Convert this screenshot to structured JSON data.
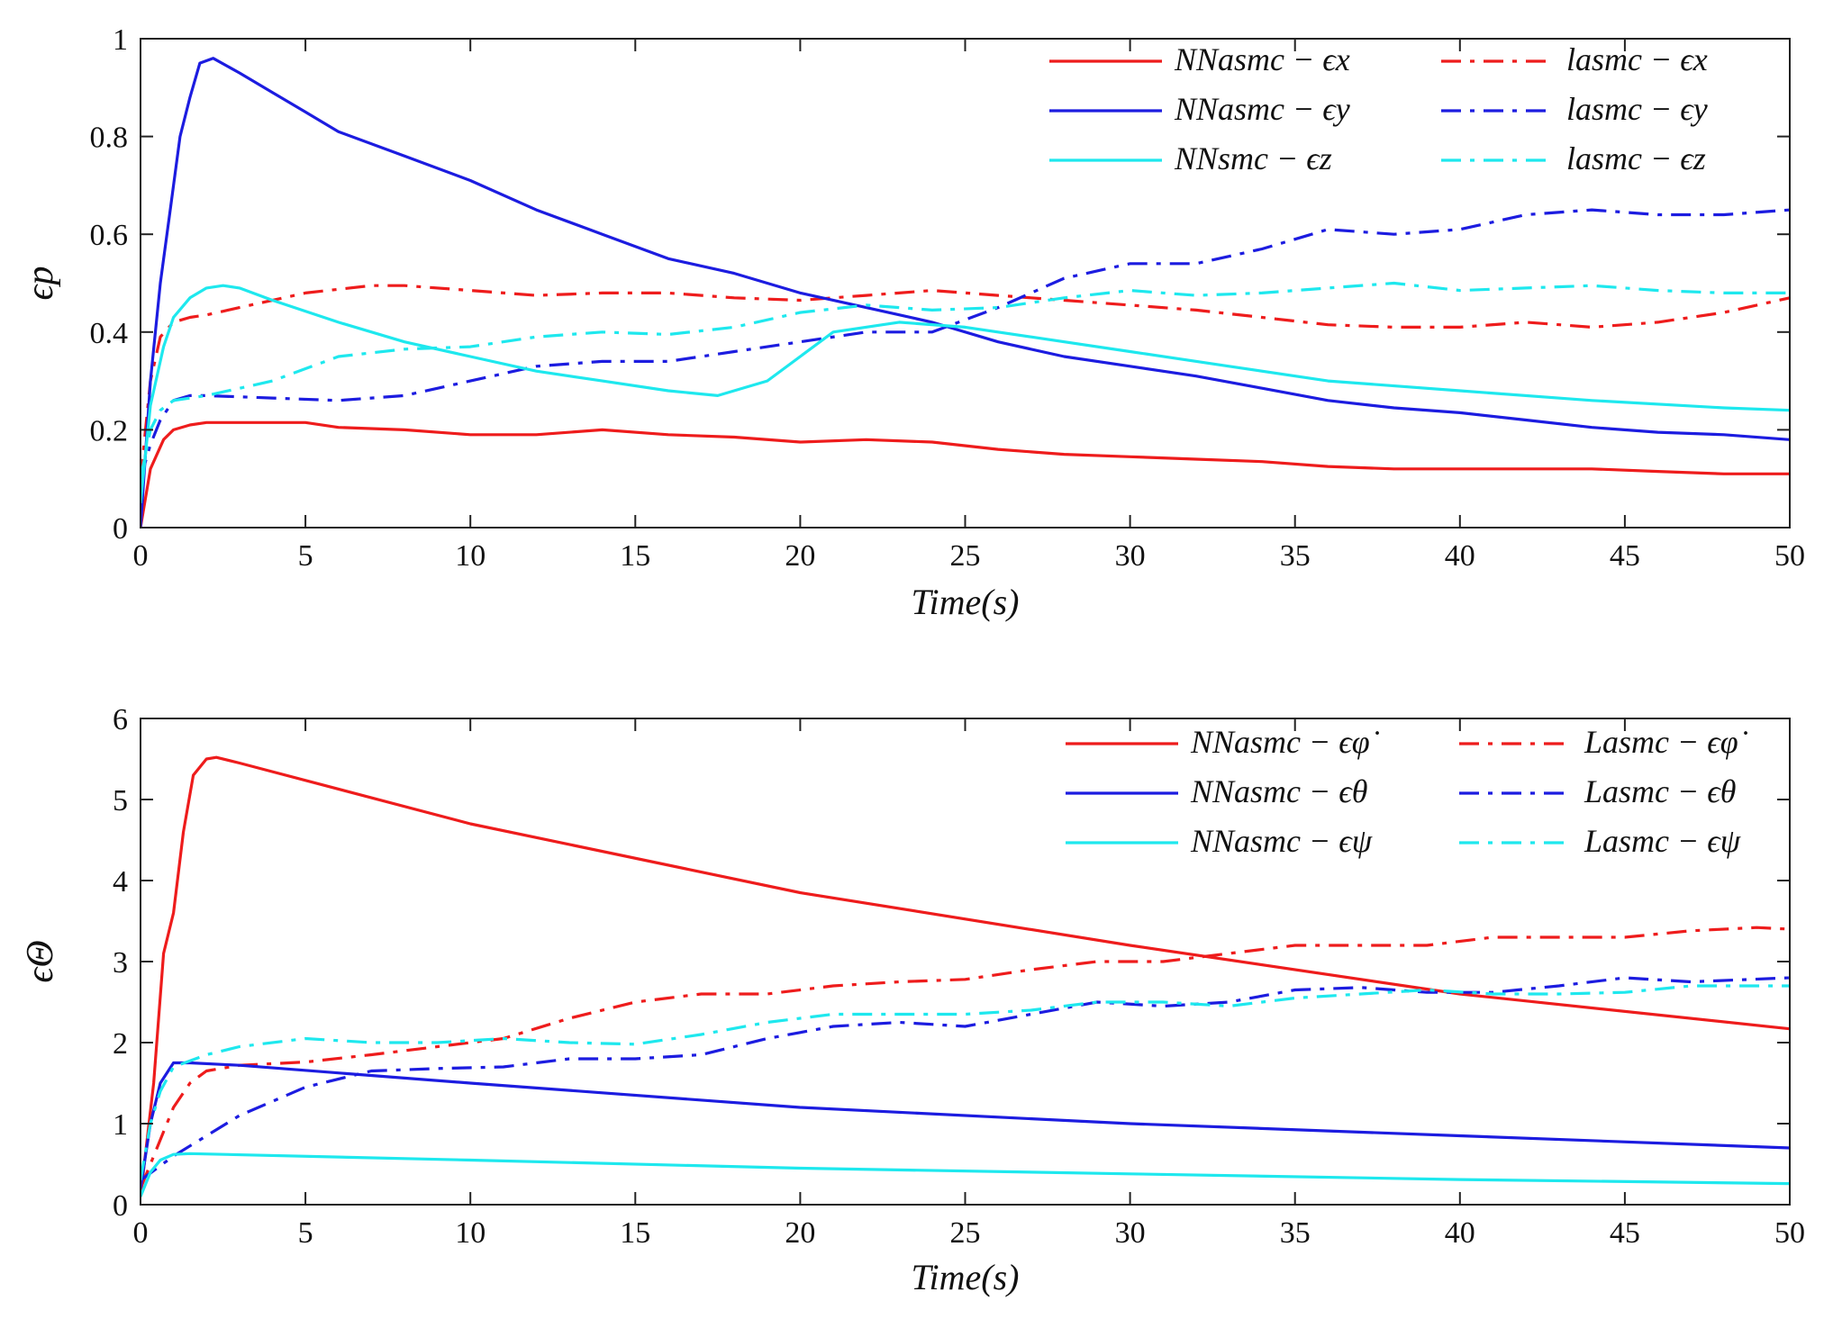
{
  "figure": {
    "colors": {
      "red": "#ee1c1c",
      "blue": "#1c1ce0",
      "cyan": "#1ee8ee",
      "axis": "#222222"
    }
  },
  "chart_data": [
    {
      "type": "line",
      "xlabel": "Time(s)",
      "ylabel": "ϵp",
      "xlim": [
        0,
        50
      ],
      "ylim": [
        0,
        1
      ],
      "xticks": [
        "0",
        "5",
        "10",
        "15",
        "20",
        "25",
        "30",
        "35",
        "40",
        "45",
        "50"
      ],
      "yticks": [
        "0",
        "0.2",
        "0.4",
        "0.6",
        "0.8",
        "1"
      ],
      "xtick_values": [
        0,
        5,
        10,
        15,
        20,
        25,
        30,
        35,
        40,
        45,
        50
      ],
      "ytick_values": [
        0,
        0.2,
        0.4,
        0.6,
        0.8,
        1
      ],
      "legend_position": "top-right",
      "series": [
        {
          "name": "NNasmc − ϵx",
          "color": "#ee1c1c",
          "style": "solid",
          "x": [
            0,
            0.3,
            0.7,
            1,
            1.5,
            2,
            3,
            5,
            6,
            8,
            10,
            12,
            14,
            16,
            18,
            20,
            22,
            24,
            26,
            28,
            30,
            32,
            34,
            36,
            38,
            40,
            42,
            44,
            46,
            48,
            50
          ],
          "y": [
            0,
            0.12,
            0.18,
            0.2,
            0.21,
            0.215,
            0.215,
            0.215,
            0.205,
            0.2,
            0.19,
            0.19,
            0.2,
            0.19,
            0.185,
            0.175,
            0.18,
            0.175,
            0.16,
            0.15,
            0.145,
            0.14,
            0.135,
            0.125,
            0.12,
            0.12,
            0.12,
            0.12,
            0.115,
            0.11,
            0.11
          ]
        },
        {
          "name": "lasmc − ϵx",
          "color": "#ee1c1c",
          "style": "dashdot",
          "x": [
            0,
            0.3,
            0.6,
            1,
            1.5,
            2,
            3,
            5,
            7,
            8,
            10,
            12,
            14,
            16,
            18,
            20,
            22,
            24,
            26,
            28,
            30,
            32,
            34,
            36,
            38,
            40,
            42,
            44,
            46,
            48,
            50
          ],
          "y": [
            0.1,
            0.3,
            0.39,
            0.42,
            0.43,
            0.435,
            0.45,
            0.48,
            0.495,
            0.495,
            0.485,
            0.475,
            0.48,
            0.48,
            0.47,
            0.465,
            0.475,
            0.485,
            0.475,
            0.465,
            0.455,
            0.445,
            0.43,
            0.415,
            0.41,
            0.41,
            0.42,
            0.41,
            0.42,
            0.44,
            0.47
          ]
        },
        {
          "name": "NNasmc − ϵy",
          "color": "#1c1ce0",
          "style": "solid",
          "x": [
            0,
            0.3,
            0.6,
            0.9,
            1.2,
            1.5,
            1.8,
            2.2,
            3,
            4,
            5,
            6,
            8,
            10,
            12,
            14,
            16,
            18,
            19,
            20,
            22,
            24,
            26,
            28,
            30,
            32,
            34,
            36,
            38,
            40,
            42,
            44,
            46,
            48,
            50
          ],
          "y": [
            0,
            0.3,
            0.5,
            0.65,
            0.8,
            0.88,
            0.95,
            0.96,
            0.93,
            0.89,
            0.85,
            0.81,
            0.76,
            0.71,
            0.65,
            0.6,
            0.55,
            0.52,
            0.5,
            0.48,
            0.45,
            0.42,
            0.38,
            0.35,
            0.33,
            0.31,
            0.285,
            0.26,
            0.245,
            0.235,
            0.22,
            0.205,
            0.195,
            0.19,
            0.18
          ]
        },
        {
          "name": "lasmc − ϵy",
          "color": "#1c1ce0",
          "style": "dashdot",
          "x": [
            0,
            0.3,
            0.6,
            1,
            1.5,
            2,
            4,
            6,
            8,
            10,
            12,
            14,
            16,
            18,
            20,
            22,
            24,
            26,
            28,
            30,
            32,
            34,
            36,
            38,
            40,
            42,
            44,
            46,
            48,
            50
          ],
          "y": [
            0.1,
            0.17,
            0.22,
            0.26,
            0.27,
            0.27,
            0.265,
            0.26,
            0.27,
            0.3,
            0.33,
            0.34,
            0.34,
            0.36,
            0.38,
            0.4,
            0.4,
            0.45,
            0.51,
            0.54,
            0.54,
            0.57,
            0.61,
            0.6,
            0.61,
            0.64,
            0.65,
            0.64,
            0.64,
            0.65
          ]
        },
        {
          "name": "NNsmc − ϵz",
          "color": "#1ee8ee",
          "style": "solid",
          "x": [
            0,
            0.3,
            0.7,
            1,
            1.5,
            2,
            2.5,
            3,
            4,
            6,
            8,
            10,
            12,
            14,
            16,
            17.5,
            19,
            20,
            21,
            23,
            25,
            27,
            30,
            33,
            36,
            40,
            44,
            48,
            50
          ],
          "y": [
            0.05,
            0.25,
            0.37,
            0.43,
            0.47,
            0.49,
            0.495,
            0.49,
            0.465,
            0.42,
            0.38,
            0.35,
            0.32,
            0.3,
            0.28,
            0.27,
            0.3,
            0.35,
            0.4,
            0.42,
            0.41,
            0.39,
            0.36,
            0.33,
            0.3,
            0.28,
            0.26,
            0.245,
            0.24
          ]
        },
        {
          "name": "lasmc − ϵz",
          "color": "#1ee8ee",
          "style": "dashdot",
          "x": [
            0,
            0.3,
            0.6,
            1,
            2,
            4,
            6,
            8,
            10,
            12,
            14,
            16,
            18,
            20,
            22,
            24,
            26,
            28,
            30,
            32,
            34,
            36,
            38,
            40,
            42,
            44,
            46,
            48,
            50
          ],
          "y": [
            0.1,
            0.2,
            0.24,
            0.26,
            0.27,
            0.3,
            0.35,
            0.365,
            0.37,
            0.39,
            0.4,
            0.395,
            0.41,
            0.44,
            0.455,
            0.445,
            0.45,
            0.47,
            0.485,
            0.475,
            0.48,
            0.49,
            0.5,
            0.485,
            0.49,
            0.495,
            0.485,
            0.48,
            0.48
          ]
        }
      ]
    },
    {
      "type": "line",
      "xlabel": "Time(s)",
      "ylabel": "ϵΘ",
      "xlim": [
        0,
        50
      ],
      "ylim": [
        0,
        6
      ],
      "xticks": [
        "0",
        "5",
        "10",
        "15",
        "20",
        "25",
        "30",
        "35",
        "40",
        "45",
        "50"
      ],
      "yticks": [
        "0",
        "1",
        "2",
        "3",
        "4",
        "5",
        "6"
      ],
      "xtick_values": [
        0,
        5,
        10,
        15,
        20,
        25,
        30,
        35,
        40,
        45,
        50
      ],
      "ytick_values": [
        0,
        1,
        2,
        3,
        4,
        5,
        6
      ],
      "legend_position": "top-right",
      "series": [
        {
          "name": "NNasmc − ϵφ̇",
          "color": "#ee1c1c",
          "style": "solid",
          "x": [
            0,
            0.4,
            0.7,
            1,
            1.3,
            1.6,
            2,
            2.3,
            3,
            10,
            20,
            30,
            40,
            50
          ],
          "y": [
            0.1,
            1.5,
            3.1,
            3.6,
            4.6,
            5.3,
            5.5,
            5.52,
            5.45,
            4.7,
            3.85,
            3.2,
            2.6,
            2.17
          ]
        },
        {
          "name": "Lasmc − ϵφ̇",
          "color": "#ee1c1c",
          "style": "dashdot",
          "x": [
            0,
            0.5,
            1,
            1.5,
            2,
            3,
            5,
            7,
            9,
            11,
            13,
            15,
            17,
            19,
            21,
            23,
            25,
            27,
            29,
            31,
            33,
            35,
            37,
            39,
            41,
            43,
            45,
            47,
            49,
            50
          ],
          "y": [
            0.2,
            0.7,
            1.2,
            1.5,
            1.65,
            1.72,
            1.76,
            1.85,
            1.95,
            2.05,
            2.3,
            2.5,
            2.6,
            2.6,
            2.7,
            2.75,
            2.78,
            2.9,
            3.0,
            3.0,
            3.1,
            3.2,
            3.2,
            3.2,
            3.3,
            3.3,
            3.3,
            3.38,
            3.42,
            3.4
          ]
        },
        {
          "name": "NNasmc − ϵθ",
          "color": "#1c1ce0",
          "style": "solid",
          "x": [
            0,
            0.3,
            0.6,
            1,
            1.5,
            3,
            10,
            20,
            30,
            40,
            50
          ],
          "y": [
            0.2,
            1.0,
            1.5,
            1.75,
            1.75,
            1.72,
            1.5,
            1.2,
            1.0,
            0.85,
            0.7
          ]
        },
        {
          "name": "Lasmc − ϵθ",
          "color": "#1c1ce0",
          "style": "dashdot",
          "x": [
            0,
            1,
            3,
            5,
            7,
            9,
            11,
            13,
            15,
            17,
            19,
            21,
            23,
            25,
            27,
            29,
            31,
            33,
            35,
            37,
            39,
            41,
            43,
            45,
            47,
            50
          ],
          "y": [
            0.3,
            0.6,
            1.1,
            1.45,
            1.65,
            1.68,
            1.7,
            1.8,
            1.8,
            1.85,
            2.05,
            2.2,
            2.25,
            2.2,
            2.35,
            2.5,
            2.45,
            2.5,
            2.65,
            2.68,
            2.62,
            2.62,
            2.7,
            2.8,
            2.75,
            2.8
          ]
        },
        {
          "name": "NNasmc − ϵψ",
          "color": "#1ee8ee",
          "style": "solid",
          "x": [
            0,
            0.3,
            0.6,
            1,
            1.5,
            10,
            20,
            30,
            40,
            50
          ],
          "y": [
            0.1,
            0.4,
            0.55,
            0.62,
            0.63,
            0.55,
            0.45,
            0.38,
            0.31,
            0.26
          ]
        },
        {
          "name": "Lasmc − ϵψ",
          "color": "#1ee8ee",
          "style": "dashdot",
          "x": [
            0,
            0.3,
            0.6,
            1,
            2,
            3,
            5,
            7,
            9,
            11,
            13,
            15,
            17,
            19,
            21,
            23,
            25,
            27,
            29,
            31,
            33,
            35,
            37,
            39,
            41,
            43,
            45,
            47,
            50
          ],
          "y": [
            0.3,
            1.0,
            1.4,
            1.7,
            1.85,
            1.95,
            2.05,
            2.0,
            2.0,
            2.05,
            2.0,
            1.98,
            2.1,
            2.25,
            2.35,
            2.35,
            2.35,
            2.4,
            2.5,
            2.5,
            2.45,
            2.55,
            2.6,
            2.65,
            2.6,
            2.6,
            2.62,
            2.7,
            2.7
          ]
        }
      ]
    }
  ]
}
